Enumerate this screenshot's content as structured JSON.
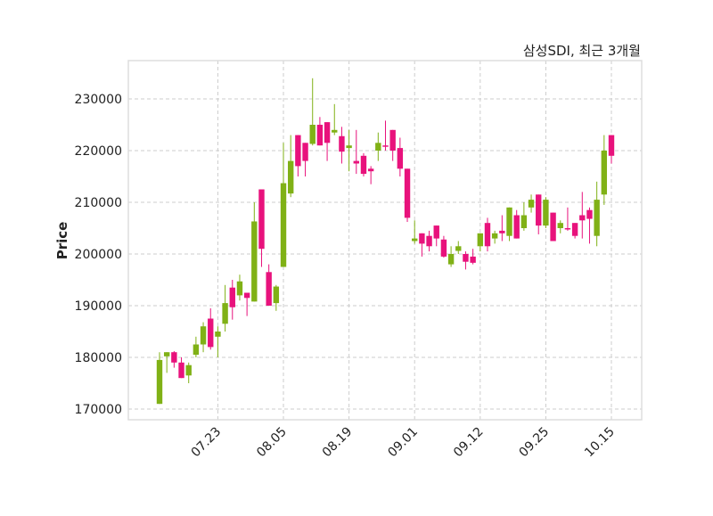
{
  "chart_data": {
    "type": "candlestick",
    "title": "삼성SDI, 최근 3개월",
    "xlabel": "",
    "ylabel": "Price",
    "ylim": [
      168000,
      237000
    ],
    "yticks": [
      170000,
      180000,
      190000,
      200000,
      210000,
      220000,
      230000
    ],
    "xticks": [
      {
        "label": "07.23",
        "index": 9
      },
      {
        "label": "08.05",
        "index": 18
      },
      {
        "label": "08.19",
        "index": 27
      },
      {
        "label": "09.01",
        "index": 36
      },
      {
        "label": "09.12",
        "index": 45
      },
      {
        "label": "09.25",
        "index": 54
      },
      {
        "label": "10.15",
        "index": 63
      }
    ],
    "grid": true,
    "colors": {
      "up": "#80b116",
      "down": "#e8127c",
      "grid": "#cccccc",
      "frame": "#dddddd"
    },
    "ohlc": [
      [
        171000,
        181000,
        171000,
        179500
      ],
      [
        180200,
        181000,
        177000,
        181000
      ],
      [
        181000,
        181200,
        178000,
        179000
      ],
      [
        179000,
        180000,
        176000,
        176000
      ],
      [
        176500,
        179000,
        175000,
        178500
      ],
      [
        180500,
        184000,
        180000,
        182500
      ],
      [
        182500,
        186800,
        181000,
        186000
      ],
      [
        187500,
        189500,
        181500,
        182000
      ],
      [
        184000,
        186000,
        180000,
        185000
      ],
      [
        186500,
        194000,
        185000,
        190500
      ],
      [
        193500,
        195000,
        187300,
        189700
      ],
      [
        192000,
        196000,
        191000,
        194700
      ],
      [
        192500,
        192500,
        188000,
        191500
      ],
      [
        190800,
        210000,
        190800,
        206300
      ],
      [
        212500,
        212500,
        197500,
        201000
      ],
      [
        196500,
        198000,
        190000,
        190000
      ],
      [
        190500,
        194000,
        189000,
        193700
      ],
      [
        197500,
        221500,
        197500,
        213700
      ],
      [
        211700,
        223000,
        211000,
        218000
      ],
      [
        223000,
        223000,
        215000,
        217000
      ],
      [
        221500,
        221500,
        215000,
        218000
      ],
      [
        221300,
        234000,
        221000,
        225000
      ],
      [
        225000,
        226500,
        221000,
        221000
      ],
      [
        225500,
        225500,
        218000,
        221500
      ],
      [
        223500,
        229000,
        223000,
        224000
      ],
      [
        222800,
        224600,
        217500,
        219800
      ],
      [
        220500,
        224000,
        216000,
        221000
      ],
      [
        218000,
        224000,
        215500,
        217500
      ],
      [
        219000,
        219500,
        215000,
        215500
      ],
      [
        216500,
        217000,
        213500,
        216000
      ],
      [
        220000,
        223500,
        218000,
        221500
      ],
      [
        221000,
        225800,
        220000,
        221000
      ],
      [
        224000,
        224000,
        218000,
        220000
      ],
      [
        220500,
        222500,
        215000,
        216500
      ],
      [
        216500,
        216500,
        206200,
        207000
      ],
      [
        202500,
        206500,
        202000,
        203000
      ],
      [
        204000,
        204000,
        199500,
        202000
      ],
      [
        203500,
        204500,
        200500,
        201500
      ],
      [
        205500,
        205500,
        201500,
        203000
      ],
      [
        202800,
        203500,
        199300,
        199500
      ],
      [
        198000,
        201500,
        197500,
        200000
      ],
      [
        200600,
        202500,
        200000,
        201500
      ],
      [
        200000,
        200500,
        197000,
        198500
      ],
      [
        199500,
        201000,
        198000,
        198300
      ],
      [
        201500,
        204000,
        200500,
        204000
      ],
      [
        206000,
        207000,
        200500,
        201500
      ],
      [
        203000,
        204500,
        202000,
        204000
      ],
      [
        204500,
        207500,
        202500,
        204000
      ],
      [
        203500,
        209000,
        202500,
        209000
      ],
      [
        207500,
        208500,
        203000,
        203000
      ],
      [
        205000,
        210000,
        204500,
        207500
      ],
      [
        209000,
        211500,
        208000,
        210500
      ],
      [
        211500,
        211500,
        203800,
        205500
      ],
      [
        205500,
        211000,
        205000,
        210500
      ],
      [
        208000,
        208000,
        202500,
        202500
      ],
      [
        205000,
        206500,
        204000,
        206000
      ],
      [
        205000,
        209000,
        204500,
        205000
      ],
      [
        206000,
        206000,
        203000,
        203500
      ],
      [
        207500,
        212000,
        203000,
        206500
      ],
      [
        208500,
        209000,
        202000,
        206800
      ],
      [
        203500,
        214000,
        201500,
        210500
      ],
      [
        211500,
        223000,
        209500,
        220000
      ],
      [
        223000,
        223000,
        217500,
        219000
      ]
    ]
  }
}
